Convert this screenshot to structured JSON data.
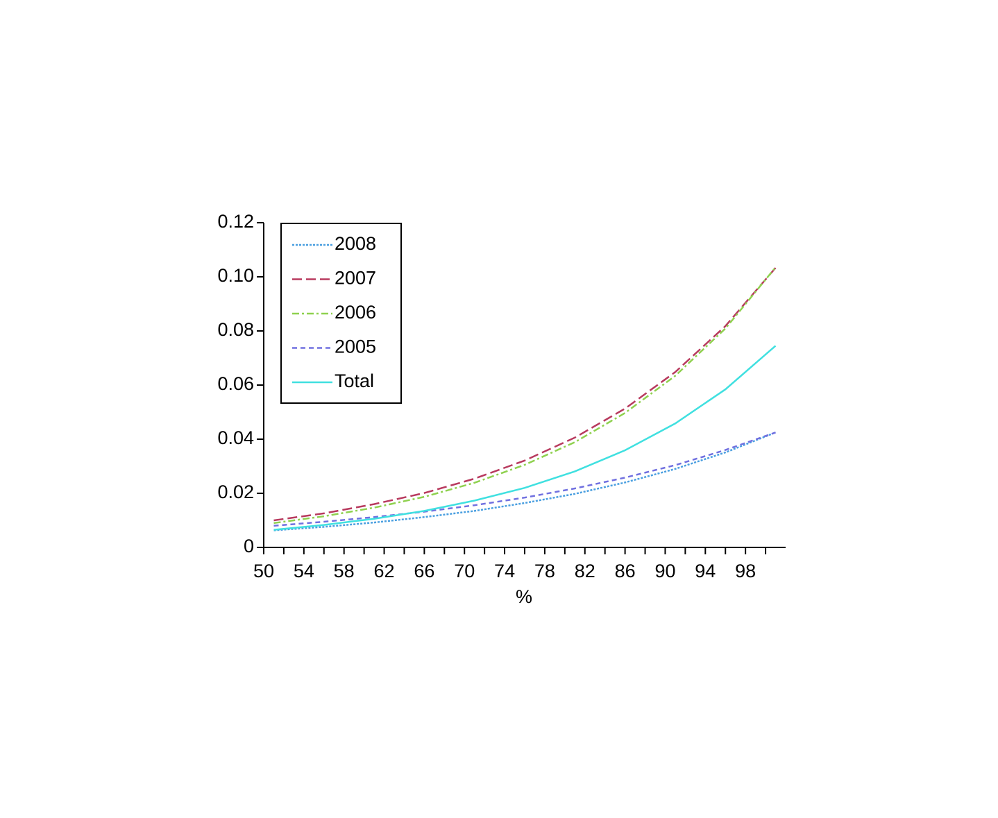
{
  "chart_data": {
    "type": "line",
    "x_label": "%",
    "x": [
      51,
      56,
      61,
      66,
      71,
      76,
      81,
      86,
      91,
      96,
      101
    ],
    "series": [
      {
        "name": "2008",
        "color": "#4a9fe0",
        "style": "dotted",
        "values": [
          0.0063,
          0.0076,
          0.0092,
          0.0112,
          0.0135,
          0.0164,
          0.0198,
          0.024,
          0.029,
          0.0351,
          0.0425
        ]
      },
      {
        "name": "2007",
        "color": "#b83a5e",
        "style": "longdash",
        "values": [
          0.01,
          0.0126,
          0.016,
          0.0201,
          0.0254,
          0.0321,
          0.0406,
          0.0513,
          0.0648,
          0.0818,
          0.1033
        ]
      },
      {
        "name": "2006",
        "color": "#8fd14f",
        "style": "dashdot",
        "values": [
          0.009,
          0.0115,
          0.0147,
          0.0187,
          0.0239,
          0.0305,
          0.0389,
          0.0497,
          0.0634,
          0.0809,
          0.1035
        ]
      },
      {
        "name": "2005",
        "color": "#7070e0",
        "style": "dashed",
        "values": [
          0.008,
          0.0095,
          0.0112,
          0.0132,
          0.0156,
          0.0184,
          0.0218,
          0.0258,
          0.0304,
          0.036,
          0.0425
        ]
      },
      {
        "name": "Total",
        "color": "#40e0e0",
        "style": "solid",
        "values": [
          0.0065,
          0.0083,
          0.0106,
          0.0135,
          0.0173,
          0.022,
          0.0281,
          0.0359,
          0.0458,
          0.0584,
          0.0745
        ]
      }
    ],
    "xlim": [
      50,
      102
    ],
    "xticks": [
      50,
      54,
      58,
      62,
      66,
      70,
      74,
      78,
      82,
      86,
      90,
      94,
      98
    ],
    "xticks_minor": [
      52,
      56,
      60,
      64,
      68,
      72,
      76,
      80,
      84,
      88,
      92,
      96,
      100
    ],
    "ylim": [
      0,
      0.12
    ],
    "yticks": [
      0,
      0.02,
      0.04,
      0.06,
      0.08,
      {
        "value": 0.1,
        "label": "0.10"
      },
      0.12
    ],
    "grid": false,
    "legend": "upper left"
  }
}
